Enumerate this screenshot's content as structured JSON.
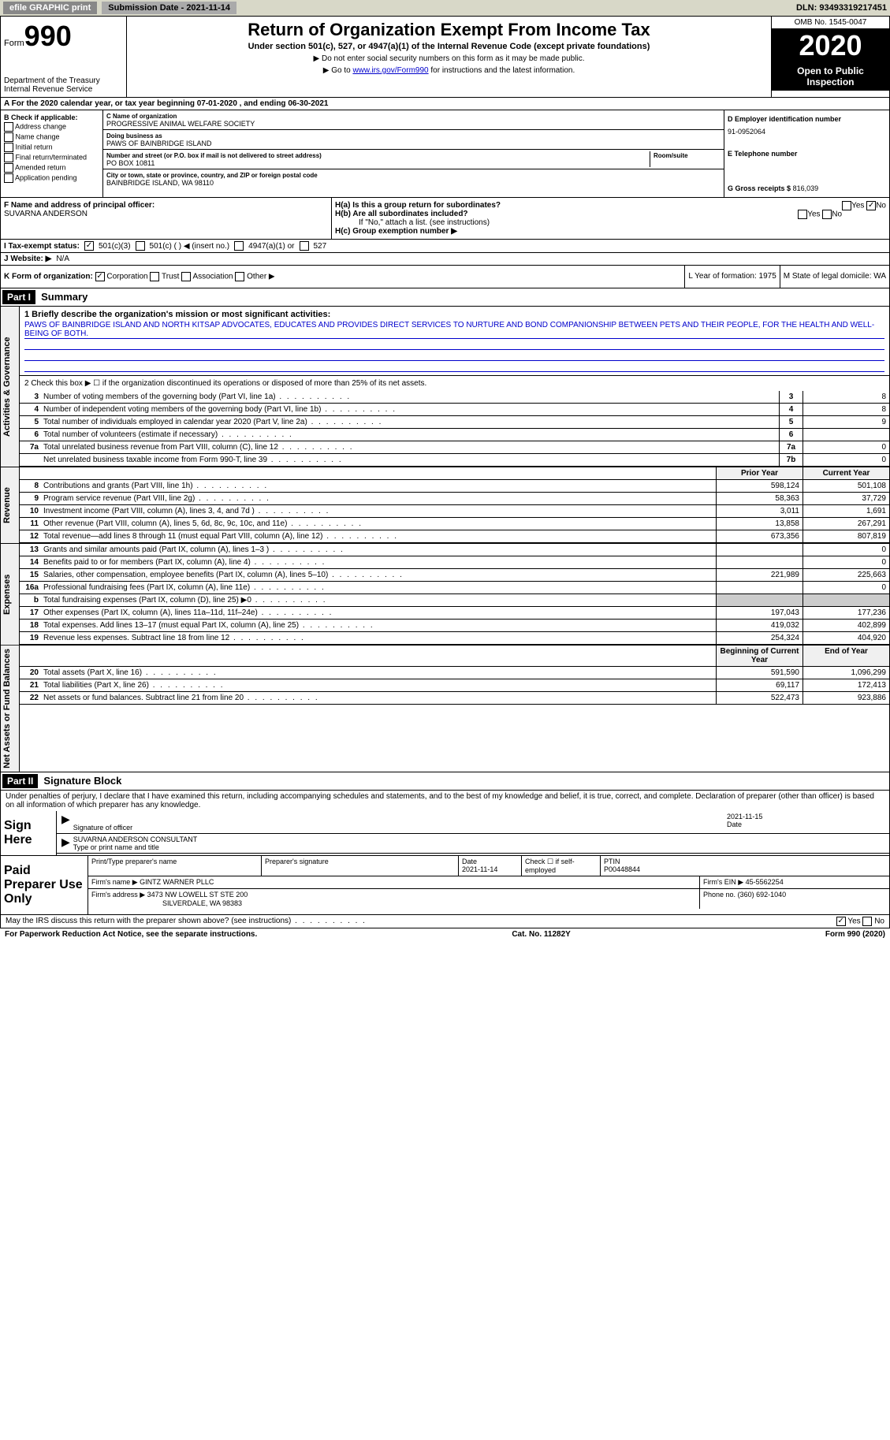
{
  "topbar": {
    "efile": "efile GRAPHIC print",
    "submission": "Submission Date - 2021-11-14",
    "dln": "DLN: 93493319217451"
  },
  "header": {
    "form_prefix": "Form",
    "form_num": "990",
    "dept": "Department of the Treasury\nInternal Revenue Service",
    "title": "Return of Organization Exempt From Income Tax",
    "subtitle": "Under section 501(c), 527, or 4947(a)(1) of the Internal Revenue Code (except private foundations)",
    "note1": "▶ Do not enter social security numbers on this form as it may be made public.",
    "note2_prefix": "▶ Go to ",
    "note2_link": "www.irs.gov/Form990",
    "note2_suffix": " for instructions and the latest information.",
    "omb": "OMB No. 1545-0047",
    "tax_year": "2020",
    "inspect": "Open to Public Inspection"
  },
  "row_a": "A For the 2020 calendar year, or tax year beginning 07-01-2020  , and ending 06-30-2021",
  "section_b": {
    "label": "B Check if applicable:",
    "opts": [
      "Address change",
      "Name change",
      "Initial return",
      "Final return/terminated",
      "Amended return",
      "Application pending"
    ]
  },
  "section_c": {
    "name_lbl": "C Name of organization",
    "name": "PROGRESSIVE ANIMAL WELFARE SOCIETY",
    "dba_lbl": "Doing business as",
    "dba": "PAWS OF BAINBRIDGE ISLAND",
    "street_lbl": "Number and street (or P.O. box if mail is not delivered to street address)",
    "room_lbl": "Room/suite",
    "street": "PO BOX 10811",
    "city_lbl": "City or town, state or province, country, and ZIP or foreign postal code",
    "city": "BAINBRIDGE ISLAND, WA  98110"
  },
  "section_d": {
    "ein_lbl": "D Employer identification number",
    "ein": "91-0952064",
    "phone_lbl": "E Telephone number",
    "gross_lbl": "G Gross receipts $",
    "gross": "816,039"
  },
  "section_f": {
    "lbl": "F Name and address of principal officer:",
    "name": "SUVARNA ANDERSON"
  },
  "section_h": {
    "ha": "H(a) Is this a group return for subordinates?",
    "hb": "H(b) Are all subordinates included?",
    "hb_note": "If \"No,\" attach a list. (see instructions)",
    "hc": "H(c) Group exemption number ▶",
    "yes": "Yes",
    "no": "No"
  },
  "row_i": {
    "lbl": "I   Tax-exempt status:",
    "opts": [
      "501(c)(3)",
      "501(c) (  ) ◀ (insert no.)",
      "4947(a)(1) or",
      "527"
    ]
  },
  "row_j": {
    "lbl": "J   Website: ▶",
    "val": "N/A"
  },
  "row_k": {
    "left_lbl": "K Form of organization:",
    "opts": [
      "Corporation",
      "Trust",
      "Association",
      "Other ▶"
    ],
    "l": "L Year of formation: 1975",
    "m": "M State of legal domicile: WA"
  },
  "part1": {
    "hdr": "Part I",
    "title": "Summary",
    "q1": "1  Briefly describe the organization's mission or most significant activities:",
    "mission": "PAWS OF BAINBRIDGE ISLAND AND NORTH KITSAP ADVOCATES, EDUCATES AND PROVIDES DIRECT SERVICES TO NURTURE AND BOND COMPANIONSHIP BETWEEN PETS AND THEIR PEOPLE, FOR THE HEALTH AND WELL-BEING OF BOTH.",
    "q2": "2   Check this box ▶ ☐  if the organization discontinued its operations or disposed of more than 25% of its net assets.",
    "tabs": {
      "gov": "Activities & Governance",
      "rev": "Revenue",
      "exp": "Expenses",
      "net": "Net Assets or Fund Balances"
    },
    "col_prior": "Prior Year",
    "col_current": "Current Year",
    "col_begin": "Beginning of Current Year",
    "col_end": "End of Year",
    "gov_lines": [
      {
        "n": "3",
        "d": "Number of voting members of the governing body (Part VI, line 1a)",
        "box": "3",
        "v": "8"
      },
      {
        "n": "4",
        "d": "Number of independent voting members of the governing body (Part VI, line 1b)",
        "box": "4",
        "v": "8"
      },
      {
        "n": "5",
        "d": "Total number of individuals employed in calendar year 2020 (Part V, line 2a)",
        "box": "5",
        "v": "9"
      },
      {
        "n": "6",
        "d": "Total number of volunteers (estimate if necessary)",
        "box": "6",
        "v": ""
      },
      {
        "n": "7a",
        "d": "Total unrelated business revenue from Part VIII, column (C), line 12",
        "box": "7a",
        "v": "0"
      },
      {
        "n": "",
        "d": "Net unrelated business taxable income from Form 990-T, line 39",
        "box": "7b",
        "v": "0"
      }
    ],
    "rev_lines": [
      {
        "n": "8",
        "d": "Contributions and grants (Part VIII, line 1h)",
        "p": "598,124",
        "c": "501,108"
      },
      {
        "n": "9",
        "d": "Program service revenue (Part VIII, line 2g)",
        "p": "58,363",
        "c": "37,729"
      },
      {
        "n": "10",
        "d": "Investment income (Part VIII, column (A), lines 3, 4, and 7d )",
        "p": "3,011",
        "c": "1,691"
      },
      {
        "n": "11",
        "d": "Other revenue (Part VIII, column (A), lines 5, 6d, 8c, 9c, 10c, and 11e)",
        "p": "13,858",
        "c": "267,291"
      },
      {
        "n": "12",
        "d": "Total revenue—add lines 8 through 11 (must equal Part VIII, column (A), line 12)",
        "p": "673,356",
        "c": "807,819"
      }
    ],
    "exp_lines": [
      {
        "n": "13",
        "d": "Grants and similar amounts paid (Part IX, column (A), lines 1–3 )",
        "p": "",
        "c": "0"
      },
      {
        "n": "14",
        "d": "Benefits paid to or for members (Part IX, column (A), line 4)",
        "p": "",
        "c": "0"
      },
      {
        "n": "15",
        "d": "Salaries, other compensation, employee benefits (Part IX, column (A), lines 5–10)",
        "p": "221,989",
        "c": "225,663"
      },
      {
        "n": "16a",
        "d": "Professional fundraising fees (Part IX, column (A), line 11e)",
        "p": "",
        "c": "0"
      },
      {
        "n": "b",
        "d": "Total fundraising expenses (Part IX, column (D), line 25) ▶0",
        "p": "shade",
        "c": "shade"
      },
      {
        "n": "17",
        "d": "Other expenses (Part IX, column (A), lines 11a–11d, 11f–24e)",
        "p": "197,043",
        "c": "177,236"
      },
      {
        "n": "18",
        "d": "Total expenses. Add lines 13–17 (must equal Part IX, column (A), line 25)",
        "p": "419,032",
        "c": "402,899"
      },
      {
        "n": "19",
        "d": "Revenue less expenses. Subtract line 18 from line 12",
        "p": "254,324",
        "c": "404,920"
      }
    ],
    "net_lines": [
      {
        "n": "20",
        "d": "Total assets (Part X, line 16)",
        "p": "591,590",
        "c": "1,096,299"
      },
      {
        "n": "21",
        "d": "Total liabilities (Part X, line 26)",
        "p": "69,117",
        "c": "172,413"
      },
      {
        "n": "22",
        "d": "Net assets or fund balances. Subtract line 21 from line 20",
        "p": "522,473",
        "c": "923,886"
      }
    ]
  },
  "part2": {
    "hdr": "Part II",
    "title": "Signature Block",
    "decl": "Under penalties of perjury, I declare that I have examined this return, including accompanying schedules and statements, and to the best of my knowledge and belief, it is true, correct, and complete. Declaration of preparer (other than officer) is based on all information of which preparer has any knowledge.",
    "sign_here": "Sign Here",
    "sig_officer": "Signature of officer",
    "sig_date_lbl": "Date",
    "sig_date": "2021-11-15",
    "sig_name": "SUVARNA ANDERSON CONSULTANT",
    "sig_name_lbl": "Type or print name and title",
    "paid": "Paid Preparer Use Only",
    "prep_name_lbl": "Print/Type preparer's name",
    "prep_sig_lbl": "Preparer's signature",
    "prep_date_lbl": "Date",
    "prep_date": "2021-11-14",
    "prep_check_lbl": "Check ☐ if self-employed",
    "ptin_lbl": "PTIN",
    "ptin": "P00448844",
    "firm_name_lbl": "Firm's name    ▶",
    "firm_name": "GINTZ WARNER PLLC",
    "firm_ein_lbl": "Firm's EIN ▶",
    "firm_ein": "45-5562254",
    "firm_addr_lbl": "Firm's address ▶",
    "firm_addr1": "3473 NW LOWELL ST STE 200",
    "firm_addr2": "SILVERDALE, WA  98383",
    "firm_phone_lbl": "Phone no.",
    "firm_phone": "(360) 692-1040",
    "discuss": "May the IRS discuss this return with the preparer shown above? (see instructions)"
  },
  "footer": {
    "left": "For Paperwork Reduction Act Notice, see the separate instructions.",
    "mid": "Cat. No. 11282Y",
    "right": "Form 990 (2020)"
  }
}
